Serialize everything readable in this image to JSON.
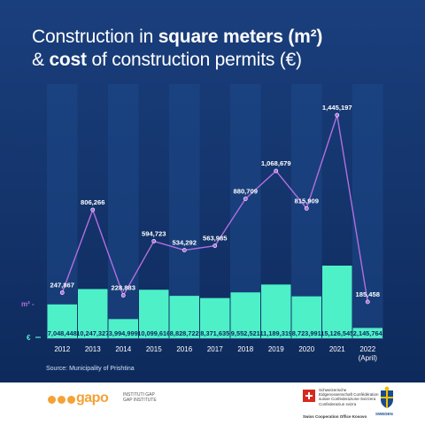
{
  "title": {
    "line1_pre": "Construction in ",
    "line1_bold": "square meters (m²)",
    "line2_pre": "& ",
    "line2_bold": "cost",
    "line2_post": " of construction permits (€)"
  },
  "source": "Source: Municipality of Prishtina",
  "chart_data": {
    "type": "bar",
    "categories": [
      "2012",
      "2013",
      "2014",
      "2015",
      "2016",
      "2017",
      "2018",
      "2019",
      "2020",
      "2021",
      "2022"
    ],
    "category_sublabels": [
      "",
      "",
      "",
      "",
      "",
      "",
      "",
      "",
      "",
      "",
      "(April)"
    ],
    "series": [
      {
        "marker": "€",
        "display": "bar",
        "values": [
          7048448,
          10247327,
          3994999,
          10099616,
          8828722,
          8371635,
          9552521,
          11189319,
          8723991,
          15126545,
          2145764
        ],
        "labels": [
          "7,048,448",
          "10,247,327",
          "3,994,999",
          "10,099,616",
          "8,828,722",
          "8,371,635",
          "9,552,521",
          "11,189,319",
          "8,723,991",
          "15,126,545",
          "2,145,764"
        ]
      },
      {
        "marker": "m² -",
        "display": "line",
        "values": [
          247867,
          806266,
          228883,
          594723,
          534292,
          563985,
          880709,
          1068679,
          815909,
          1445197,
          185458
        ],
        "labels": [
          "247,867",
          "806,266",
          "228,883",
          "594,723",
          "534,292",
          "563,985",
          "880,709",
          "1,068,679",
          "815,909",
          "1,445,197",
          "185,458"
        ]
      }
    ],
    "colors": {
      "bar": "#4ef0c8",
      "line": "#b46ee0",
      "background": "#14366e",
      "column_shade": "#1e4888"
    },
    "legend": "left markers"
  },
  "footer": {
    "logo_text": "gapo",
    "logo_sub": "INSTITUTI GAP GAP INSTITUTE",
    "swiss_text": "Schweizerische Eidgenossenschaft Confédération suisse Confederazione Svizzera Confederaziun svizra",
    "swiss_office": "Swiss Cooperation Office Kosovo",
    "sweden_label": "SWEDEN"
  }
}
